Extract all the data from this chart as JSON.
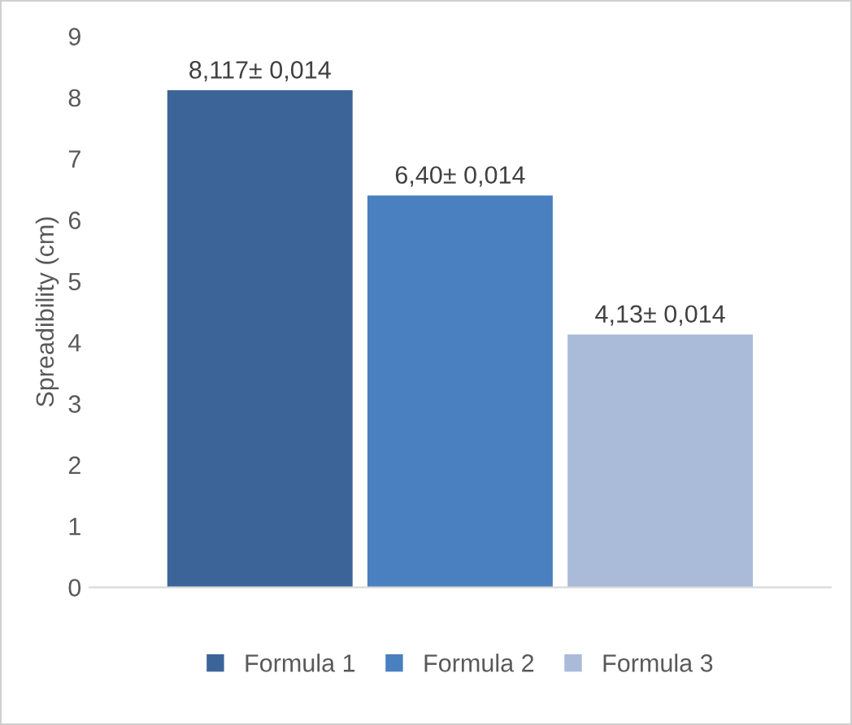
{
  "chart_data": {
    "type": "bar",
    "ylabel": "Spreadibility (cm)",
    "categories": [
      null
    ],
    "series": [
      {
        "name": "Formula 1",
        "color": "#3c6499",
        "values": [
          8.117
        ],
        "value_labels": [
          "8,117± 0,014"
        ]
      },
      {
        "name": "Formula 2",
        "color": "#4a7fc0",
        "values": [
          6.4
        ],
        "value_labels": [
          "6,40± 0,014"
        ]
      },
      {
        "name": "Formula 3",
        "color": "#a9bbd9",
        "values": [
          4.13
        ],
        "value_labels": [
          "4,13± 0,014"
        ]
      }
    ],
    "ylim": [
      0,
      9
    ],
    "yticks": [
      0,
      1,
      2,
      3,
      4,
      5,
      6,
      7,
      8,
      9
    ],
    "grid": false,
    "legend": "bottom"
  }
}
